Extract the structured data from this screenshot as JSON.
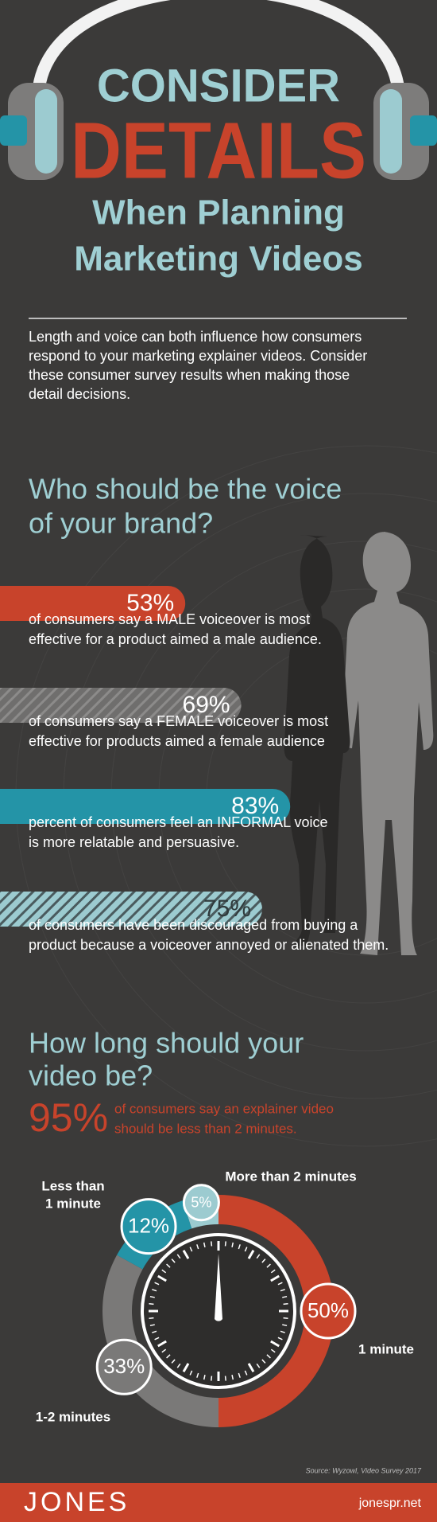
{
  "header": {
    "title_line1": "CONSIDER",
    "title_line2": "DETAILS",
    "subtitle_line1": "When Planning",
    "subtitle_line2": "Marketing Videos"
  },
  "intro": [
    "Length and voice can both influence how consumers",
    "respond to your marketing explainer videos. Consider",
    "these consumer survey results when making those",
    "detail decisions."
  ],
  "voice": {
    "heading": [
      "Who should be the voice",
      "of your brand?"
    ],
    "stats": [
      {
        "value": 53,
        "label": "53%",
        "color": "#c8432b",
        "label_color": "#ffffff",
        "text": [
          "of consumers say a MALE voiceover is most",
          "effective for a product aimed a male audience."
        ]
      },
      {
        "value": 69,
        "label": "69%",
        "color": "#6f6e6d",
        "stripe_color": "#8c8b8a",
        "label_color": "#ffffff",
        "text": [
          "of consumers say a FEMALE voiceover is most",
          "effective for products aimed a female audience"
        ]
      },
      {
        "value": 83,
        "label": "83%",
        "color": "#2494a7",
        "label_color": "#ffffff",
        "text": [
          "percent of consumers feel an INFORMAL voice",
          "is more relatable and persuasive."
        ]
      },
      {
        "value": 75,
        "label": "75%",
        "color": "#9ccbd0",
        "stripe_color": "#4a5b5e",
        "label_color": "#2f3a3c",
        "text": [
          "of consumers have been discouraged from buying a",
          "product because a voiceover annoyed or alienated them."
        ]
      }
    ]
  },
  "length": {
    "heading": [
      "How long should your",
      "video be?"
    ],
    "highlight": {
      "label": "95%",
      "text": [
        "of consumers say an explainer video",
        "should be less than 2 minutes."
      ]
    },
    "segments": [
      {
        "name": [
          "1 minute"
        ],
        "value": 50,
        "label": "50%",
        "color": "#c8432b"
      },
      {
        "name": [
          "1-2 minutes"
        ],
        "value": 33,
        "label": "33%",
        "color": "#7a7978"
      },
      {
        "name": [
          "Less than",
          "1 minute"
        ],
        "value": 12,
        "label": "12%",
        "color": "#2494a7"
      },
      {
        "name": [
          "More than 2 minutes"
        ],
        "value": 5,
        "label": "5%",
        "color": "#9ccbd0"
      }
    ]
  },
  "source": "Source: Wyzowl, Video Survey 2017",
  "footer": {
    "brand": "JONES",
    "url": "jonespr.net"
  }
}
